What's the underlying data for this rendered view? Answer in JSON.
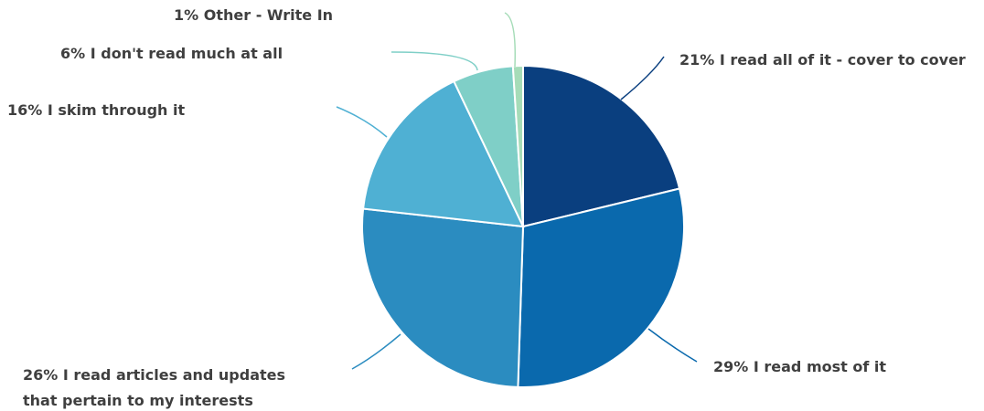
{
  "chart_data": {
    "type": "pie",
    "title": "",
    "legend": "none",
    "slices": [
      {
        "value": 21,
        "label": [
          "21% I read all of it - cover to cover"
        ],
        "color": "#0a3f7f"
      },
      {
        "value": 29,
        "label": [
          "29% I read most of it"
        ],
        "color": "#0a69ad"
      },
      {
        "value": 26,
        "label": [
          "26% I read articles and updates",
          "that pertain to my interests"
        ],
        "color": "#2b8cc0"
      },
      {
        "value": 16,
        "label": [
          "16% I skim through it"
        ],
        "color": "#4fb0d3"
      },
      {
        "value": 6,
        "label": [
          "6% I don't read much at all"
        ],
        "color": "#7fcfc7"
      },
      {
        "value": 1,
        "label": [
          "1% Other - Write In"
        ],
        "color": "#a6dcb8"
      }
    ]
  }
}
